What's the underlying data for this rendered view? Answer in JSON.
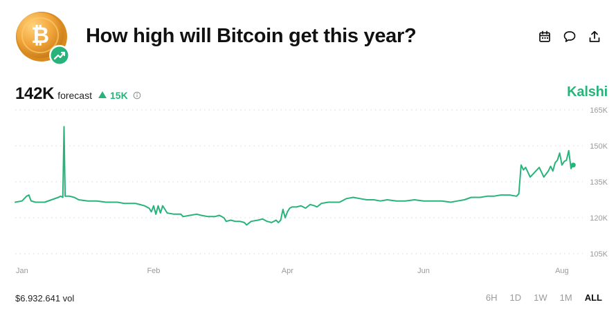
{
  "header": {
    "title": "How high will Bitcoin get this year?",
    "coin_symbol": "₿",
    "actions": [
      {
        "name": "calendar-icon"
      },
      {
        "name": "comment-icon"
      },
      {
        "name": "share-icon"
      }
    ]
  },
  "summary": {
    "forecast_value": "142K",
    "forecast_label": "forecast",
    "delta": "15K",
    "delta_direction": "up"
  },
  "brand": "Kalshi",
  "colors": {
    "accent": "#27b379",
    "coin": "#f0a43a",
    "text": "#111111",
    "muted": "#9a9a9a"
  },
  "chart_data": {
    "type": "line",
    "title": "",
    "xlabel": "",
    "ylabel": "",
    "x_ticks": [
      "Jan",
      "Feb",
      "Apr",
      "Jun",
      "Aug"
    ],
    "x_tick_days": [
      3,
      61,
      120,
      180,
      241
    ],
    "y_ticks": [
      "105K",
      "120K",
      "135K",
      "150K",
      "165K"
    ],
    "y_tick_values": [
      105,
      120,
      135,
      150,
      165
    ],
    "ylim": [
      100,
      167
    ],
    "xlim": [
      0,
      245
    ],
    "grid": true,
    "series": [
      {
        "points": [
          [
            0,
            126.5
          ],
          [
            3,
            127
          ],
          [
            5,
            129
          ],
          [
            6,
            129.5
          ],
          [
            7,
            127
          ],
          [
            9,
            126.5
          ],
          [
            13,
            126.5
          ],
          [
            16,
            127.5
          ],
          [
            19,
            128.5
          ],
          [
            20,
            129
          ],
          [
            21,
            128.5
          ],
          [
            21.5,
            158
          ],
          [
            22,
            129
          ],
          [
            24,
            129
          ],
          [
            26,
            128.5
          ],
          [
            28,
            127.5
          ],
          [
            32,
            127
          ],
          [
            36,
            127
          ],
          [
            40,
            126.5
          ],
          [
            45,
            126.5
          ],
          [
            48,
            126
          ],
          [
            53,
            126
          ],
          [
            55,
            125.5
          ],
          [
            57,
            125
          ],
          [
            59,
            124
          ],
          [
            60,
            122.5
          ],
          [
            61,
            125
          ],
          [
            62,
            121.5
          ],
          [
            63,
            125
          ],
          [
            64,
            122
          ],
          [
            65,
            125
          ],
          [
            66,
            123.5
          ],
          [
            67,
            122
          ],
          [
            70,
            121.5
          ],
          [
            73,
            121.5
          ],
          [
            74,
            120.5
          ],
          [
            77,
            121
          ],
          [
            80,
            121.5
          ],
          [
            82,
            121
          ],
          [
            85,
            120.5
          ],
          [
            88,
            120.5
          ],
          [
            90,
            121
          ],
          [
            92,
            120
          ],
          [
            93,
            118.5
          ],
          [
            95,
            119
          ],
          [
            97,
            118.5
          ],
          [
            99,
            118.5
          ],
          [
            101,
            118
          ],
          [
            102,
            117
          ],
          [
            104,
            118.5
          ],
          [
            107,
            119
          ],
          [
            109,
            119.5
          ],
          [
            111,
            118.5
          ],
          [
            113,
            118
          ],
          [
            114,
            118.5
          ],
          [
            115,
            119
          ],
          [
            116,
            118
          ],
          [
            117,
            119
          ],
          [
            118,
            123.5
          ],
          [
            119,
            120
          ],
          [
            120,
            122.5
          ],
          [
            121,
            124
          ],
          [
            122,
            124.5
          ],
          [
            124,
            124.5
          ],
          [
            126,
            125
          ],
          [
            128,
            124
          ],
          [
            130,
            125.5
          ],
          [
            132,
            125
          ],
          [
            133,
            124.5
          ],
          [
            135,
            126
          ],
          [
            138,
            126.5
          ],
          [
            140,
            126.5
          ],
          [
            143,
            126.5
          ],
          [
            146,
            128
          ],
          [
            149,
            128.5
          ],
          [
            152,
            128
          ],
          [
            155,
            127.5
          ],
          [
            158,
            127.5
          ],
          [
            161,
            127
          ],
          [
            164,
            127.5
          ],
          [
            168,
            127
          ],
          [
            172,
            127
          ],
          [
            176,
            127.5
          ],
          [
            180,
            127
          ],
          [
            184,
            127
          ],
          [
            188,
            127
          ],
          [
            192,
            126.5
          ],
          [
            195,
            127
          ],
          [
            198,
            127.5
          ],
          [
            201,
            128.5
          ],
          [
            205,
            128.5
          ],
          [
            208,
            129
          ],
          [
            211,
            129
          ],
          [
            214,
            129.5
          ],
          [
            218,
            129.5
          ],
          [
            221,
            129
          ],
          [
            222,
            130
          ],
          [
            223,
            142
          ],
          [
            224,
            140
          ],
          [
            225,
            141
          ],
          [
            226,
            139
          ],
          [
            227,
            137
          ],
          [
            229,
            139
          ],
          [
            231,
            141
          ],
          [
            232,
            139
          ],
          [
            233,
            137
          ],
          [
            235,
            139.5
          ],
          [
            236,
            141.5
          ],
          [
            237,
            139.5
          ],
          [
            238,
            143
          ],
          [
            239,
            144
          ],
          [
            240,
            147
          ],
          [
            241,
            142
          ],
          [
            242,
            143.5
          ],
          [
            243,
            144
          ],
          [
            244,
            148
          ],
          [
            245,
            140.5
          ],
          [
            246,
            142.5
          ]
        ]
      }
    ],
    "last_value": 142
  },
  "footer": {
    "volume": "$6.932.641 vol",
    "ranges": [
      "6H",
      "1D",
      "1W",
      "1M",
      "ALL"
    ],
    "active_range": "ALL"
  }
}
